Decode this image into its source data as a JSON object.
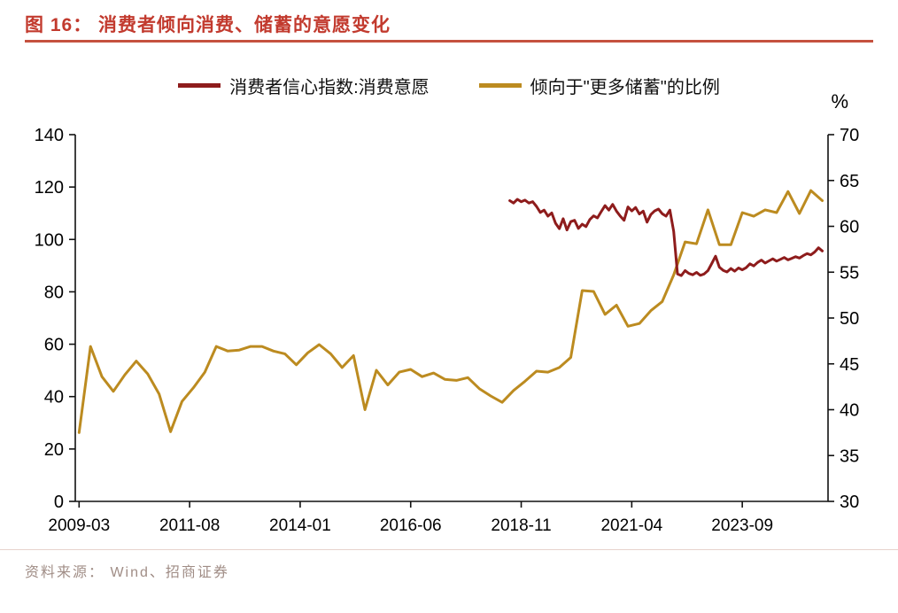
{
  "header": {
    "title": "图 16： 消费者倾向消费、储蓄的意愿变化"
  },
  "footer": {
    "source": "资料来源： Wind、招商证券"
  },
  "colors": {
    "accent_red": "#C23A2E",
    "rule_red": "#C5513F",
    "consume_line": "#8E1C1C",
    "save_line": "#BC8B20"
  },
  "chart_data": {
    "type": "line",
    "title": "消费者倾向消费、储蓄的意愿变化",
    "grid": false,
    "legend_position": "top",
    "x_ticks": [
      "2009-03",
      "2011-08",
      "2014-01",
      "2016-06",
      "2018-11",
      "2021-04",
      "2023-09"
    ],
    "left_axis": {
      "min": 0,
      "max": 140,
      "ticks": [
        0,
        20,
        40,
        60,
        80,
        100,
        120,
        140
      ]
    },
    "right_axis": {
      "min": 30,
      "max": 70,
      "ticks": [
        30,
        35,
        40,
        45,
        50,
        55,
        60,
        65,
        70
      ],
      "unit": "%"
    },
    "series": [
      {
        "key": "consume",
        "name": "消费者信心指数:消费意愿",
        "axis": "left",
        "color": "#8E1C1C",
        "x": [
          "2018-08",
          "2018-09",
          "2018-10",
          "2018-11",
          "2018-12",
          "2019-01",
          "2019-02",
          "2019-03",
          "2019-04",
          "2019-05",
          "2019-06",
          "2019-07",
          "2019-08",
          "2019-09",
          "2019-10",
          "2019-11",
          "2019-12",
          "2020-01",
          "2020-02",
          "2020-03",
          "2020-04",
          "2020-05",
          "2020-06",
          "2020-07",
          "2020-08",
          "2020-09",
          "2020-10",
          "2020-11",
          "2020-12",
          "2021-01",
          "2021-02",
          "2021-03",
          "2021-04",
          "2021-05",
          "2021-06",
          "2021-07",
          "2021-08",
          "2021-09",
          "2021-10",
          "2021-11",
          "2021-12",
          "2022-01",
          "2022-02",
          "2022-03",
          "2022-04",
          "2022-05",
          "2022-06",
          "2022-07",
          "2022-08",
          "2022-09",
          "2022-10",
          "2022-11",
          "2022-12",
          "2023-01",
          "2023-02",
          "2023-03",
          "2023-04",
          "2023-05",
          "2023-06",
          "2023-07",
          "2023-08",
          "2023-09",
          "2023-10",
          "2023-11",
          "2023-12",
          "2024-01",
          "2024-02",
          "2024-03",
          "2024-04",
          "2024-05",
          "2024-06",
          "2024-07",
          "2024-08",
          "2024-09",
          "2024-10",
          "2024-11",
          "2024-12",
          "2025-01",
          "2025-02",
          "2025-03",
          "2025-04",
          "2025-05",
          "2025-06"
        ],
        "values": [
          114.8,
          113.9,
          115.3,
          114.4,
          115.0,
          113.9,
          114.4,
          112.6,
          110.3,
          111.2,
          108.9,
          110.1,
          106.2,
          104.1,
          107.9,
          103.6,
          106.8,
          107.3,
          104.2,
          105.8,
          104.9,
          107.6,
          109.0,
          108.2,
          110.6,
          112.9,
          111.2,
          113.4,
          110.8,
          108.9,
          107.3,
          112.4,
          110.9,
          112.2,
          109.7,
          110.8,
          106.6,
          109.5,
          110.9,
          111.6,
          109.8,
          108.9,
          111.2,
          103.1,
          86.8,
          86.2,
          88.1,
          87.0,
          86.5,
          87.4,
          86.3,
          86.8,
          88.1,
          90.8,
          93.6,
          89.4,
          88.2,
          87.6,
          88.9,
          87.9,
          89.1,
          88.4,
          89.2,
          90.7,
          89.9,
          91.2,
          92.1,
          91.0,
          91.8,
          92.6,
          91.7,
          92.4,
          93.1,
          92.2,
          92.8,
          93.4,
          92.9,
          93.8,
          94.6,
          94.1,
          95.2,
          96.8,
          95.6
        ]
      },
      {
        "key": "save",
        "name": "倾向于\"更多储蓄\"的比例",
        "axis": "right",
        "color": "#BC8B20",
        "x": [
          "2009-03",
          "2009-06",
          "2009-09",
          "2009-12",
          "2010-03",
          "2010-06",
          "2010-09",
          "2010-12",
          "2011-03",
          "2011-06",
          "2011-09",
          "2011-12",
          "2012-03",
          "2012-06",
          "2012-09",
          "2012-12",
          "2013-03",
          "2013-06",
          "2013-09",
          "2013-12",
          "2014-03",
          "2014-06",
          "2014-09",
          "2014-12",
          "2015-03",
          "2015-06",
          "2015-09",
          "2015-12",
          "2016-03",
          "2016-06",
          "2016-09",
          "2016-12",
          "2017-03",
          "2017-06",
          "2017-09",
          "2017-12",
          "2018-03",
          "2018-06",
          "2018-09",
          "2018-12",
          "2019-03",
          "2019-06",
          "2019-09",
          "2019-12",
          "2020-03",
          "2020-06",
          "2020-09",
          "2020-12",
          "2021-03",
          "2021-06",
          "2021-09",
          "2021-12",
          "2022-03",
          "2022-06",
          "2022-09",
          "2022-12",
          "2023-03",
          "2023-06",
          "2023-09",
          "2023-12",
          "2024-03",
          "2024-06",
          "2024-09",
          "2024-12",
          "2025-03",
          "2025-06"
        ],
        "values": [
          37.5,
          46.9,
          43.6,
          42.0,
          43.8,
          45.3,
          43.9,
          41.7,
          37.6,
          40.9,
          42.4,
          44.1,
          46.9,
          46.4,
          46.5,
          46.9,
          46.9,
          46.4,
          46.1,
          44.9,
          46.2,
          47.1,
          46.1,
          44.6,
          45.9,
          40.0,
          44.3,
          42.7,
          44.1,
          44.4,
          43.6,
          44.0,
          43.3,
          43.2,
          43.5,
          42.3,
          41.5,
          40.8,
          42.1,
          43.1,
          44.2,
          44.1,
          44.6,
          45.7,
          53.0,
          52.9,
          50.4,
          51.4,
          49.1,
          49.4,
          50.8,
          51.8,
          54.7,
          58.3,
          58.1,
          61.8,
          58.0,
          58.0,
          61.5,
          61.1,
          61.8,
          61.5,
          63.8,
          61.4,
          63.9,
          62.8
        ]
      }
    ]
  }
}
